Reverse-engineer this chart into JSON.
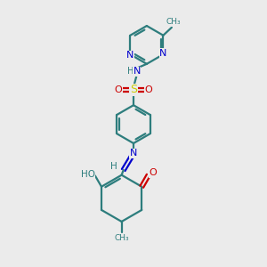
{
  "bg_color": "#ebebeb",
  "bond_color": "#2d7d7d",
  "nitrogen_color": "#0000cc",
  "oxygen_color": "#cc0000",
  "sulfur_color": "#cccc00",
  "linewidth": 1.6,
  "figsize": [
    3.0,
    3.0
  ],
  "dpi": 100,
  "xlim": [
    0,
    10
  ],
  "ylim": [
    0,
    10
  ]
}
